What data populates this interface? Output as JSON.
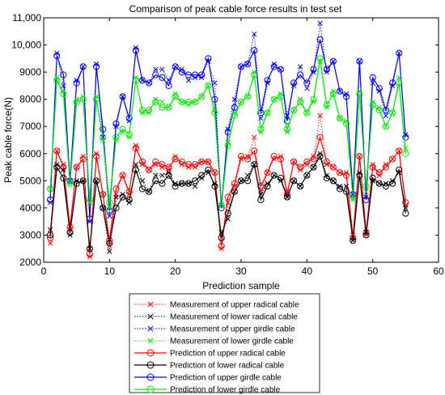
{
  "chart_data": {
    "type": "line",
    "title": "Comparison of peak cable force results in test set",
    "xlabel": "Prediction sample",
    "ylabel": "Peak cable force(N)",
    "xlim": [
      0,
      60
    ],
    "ylim": [
      2000,
      11000
    ],
    "xticks": [
      "0",
      "10",
      "20",
      "30",
      "40",
      "50",
      "60"
    ],
    "yticks": [
      "2000",
      "3000",
      "4000",
      "5000",
      "6000",
      "7000",
      "8000",
      "9000",
      "10,000",
      "11,000"
    ],
    "grid": false,
    "legend_position": "below",
    "x": [
      1,
      2,
      3,
      4,
      5,
      6,
      7,
      8,
      9,
      10,
      11,
      12,
      13,
      14,
      15,
      16,
      17,
      18,
      19,
      20,
      21,
      22,
      23,
      24,
      25,
      26,
      27,
      28,
      29,
      30,
      31,
      32,
      33,
      34,
      35,
      36,
      37,
      38,
      39,
      40,
      41,
      42,
      43,
      44,
      45,
      46,
      47,
      48,
      49,
      50,
      51,
      52,
      53,
      54,
      55
    ],
    "series": [
      {
        "name": "Measurement of upper radical cable",
        "color": "#ff0000",
        "line": "dotted",
        "marker": "x",
        "values": [
          2700,
          6100,
          5600,
          3200,
          5500,
          5900,
          2200,
          6000,
          4500,
          2600,
          4500,
          5200,
          4500,
          6300,
          5600,
          5400,
          5600,
          5500,
          5400,
          5900,
          5600,
          5500,
          5500,
          5700,
          5700,
          5300,
          2500,
          4200,
          4800,
          5800,
          5900,
          6600,
          4600,
          5300,
          5800,
          5900,
          4600,
          5700,
          5400,
          5600,
          5900,
          7400,
          5600,
          5500,
          5300,
          5300,
          3000,
          5900,
          3000,
          5600,
          5200,
          5600,
          5800,
          6100,
          4100
        ]
      },
      {
        "name": "Measurement of lower radical cable",
        "color": "#000000",
        "line": "dotted",
        "marker": "x",
        "values": [
          3200,
          5600,
          5400,
          3000,
          5000,
          5000,
          2500,
          5000,
          4000,
          2400,
          4400,
          4500,
          4200,
          5600,
          5000,
          4600,
          5200,
          5200,
          5300,
          4900,
          4900,
          4900,
          4800,
          5100,
          5300,
          4900,
          3100,
          3600,
          4600,
          5000,
          5200,
          5600,
          4500,
          4900,
          5200,
          5000,
          4400,
          5000,
          4800,
          5200,
          5500,
          6000,
          5200,
          5000,
          4800,
          4800,
          2800,
          5300,
          3100,
          5000,
          4900,
          4900,
          5000,
          5300,
          4000
        ]
      },
      {
        "name": "Measurement of upper girdle cable",
        "color": "#0000ff",
        "line": "dotted",
        "marker": "x",
        "values": [
          4200,
          9700,
          8500,
          5000,
          8700,
          9200,
          3500,
          9300,
          6600,
          3700,
          7000,
          8100,
          7200,
          9900,
          8700,
          8600,
          9100,
          9100,
          8700,
          9200,
          9100,
          8700,
          8800,
          8800,
          9400,
          8600,
          4100,
          6900,
          8000,
          9200,
          9300,
          10400,
          7300,
          8600,
          9300,
          9100,
          7400,
          8500,
          9200,
          8400,
          9000,
          10800,
          9000,
          9400,
          8300,
          8200,
          4500,
          9400,
          4400,
          8600,
          8300,
          7400,
          8500,
          9700,
          6700
        ]
      },
      {
        "name": "Measurement of lower girdle cable",
        "color": "#00ee00",
        "line": "dotted",
        "marker": "x",
        "values": [
          4700,
          8800,
          8300,
          4900,
          8000,
          8100,
          4200,
          8100,
          6500,
          4000,
          6500,
          6800,
          6600,
          8800,
          7500,
          7500,
          8000,
          7900,
          7700,
          8200,
          7900,
          7800,
          7900,
          8100,
          8500,
          7600,
          4100,
          6400,
          7500,
          7900,
          8100,
          9000,
          6800,
          7500,
          8000,
          8200,
          6800,
          7600,
          8000,
          7500,
          7900,
          9400,
          7700,
          8300,
          7300,
          7200,
          4300,
          8300,
          4600,
          7900,
          7700,
          7000,
          7500,
          8800,
          6200
        ]
      },
      {
        "name": "Prediction of upper radical cable",
        "color": "#ff0000",
        "line": "solid",
        "marker": "o",
        "values": [
          2900,
          6100,
          5500,
          3300,
          5500,
          5800,
          2300,
          5900,
          4500,
          2800,
          4700,
          5200,
          4600,
          6200,
          5700,
          5400,
          5700,
          5600,
          5500,
          5800,
          5700,
          5600,
          5600,
          5700,
          5700,
          5300,
          2600,
          4400,
          4900,
          5900,
          5800,
          6100,
          4800,
          5300,
          5900,
          5800,
          4500,
          5700,
          5500,
          5700,
          5800,
          6600,
          5700,
          5500,
          5300,
          5200,
          2900,
          5900,
          3100,
          5500,
          5300,
          5500,
          5800,
          6100,
          4200
        ]
      },
      {
        "name": "Prediction of lower radical cable",
        "color": "#000000",
        "line": "solid",
        "marker": "o",
        "values": [
          3000,
          5500,
          5100,
          3100,
          4900,
          5000,
          2500,
          5000,
          4000,
          2700,
          4000,
          4400,
          4300,
          5400,
          4700,
          4600,
          5000,
          4900,
          5200,
          4800,
          4900,
          4900,
          5000,
          5200,
          5400,
          4800,
          2900,
          3800,
          4600,
          5000,
          5000,
          5600,
          4300,
          4800,
          5200,
          5100,
          4400,
          5000,
          4800,
          5200,
          5500,
          5900,
          5100,
          5000,
          4700,
          4600,
          2800,
          5200,
          3000,
          5100,
          4900,
          4800,
          4900,
          5400,
          3800
        ]
      },
      {
        "name": "Prediction of upper girdle cable",
        "color": "#0000ff",
        "line": "solid",
        "marker": "o",
        "values": [
          4300,
          9600,
          8900,
          5000,
          8600,
          9200,
          3600,
          9200,
          6900,
          3900,
          7100,
          8100,
          7300,
          9800,
          8700,
          8600,
          8900,
          8800,
          8500,
          9200,
          9000,
          8900,
          8900,
          8900,
          9500,
          8000,
          4000,
          6800,
          7700,
          9200,
          9300,
          9800,
          7500,
          8700,
          9200,
          9100,
          7200,
          8600,
          8900,
          8600,
          9100,
          10200,
          9100,
          9400,
          8300,
          8100,
          4500,
          9400,
          4300,
          8800,
          8400,
          7600,
          8600,
          9700,
          6600
        ]
      },
      {
        "name": "Prediction of lower girdle cable",
        "color": "#00ee00",
        "line": "solid",
        "marker": "o",
        "values": [
          4700,
          8700,
          8200,
          4900,
          7900,
          8000,
          4300,
          8000,
          6600,
          4200,
          6600,
          6900,
          6700,
          8700,
          7600,
          7600,
          7900,
          7700,
          7700,
          8100,
          7900,
          7900,
          7900,
          8100,
          8500,
          7500,
          4100,
          6300,
          7400,
          7900,
          8100,
          8900,
          6900,
          7500,
          8000,
          8100,
          6900,
          7600,
          7900,
          7500,
          8000,
          9500,
          7800,
          8200,
          7300,
          7100,
          4400,
          8200,
          4800,
          7800,
          7600,
          7000,
          7500,
          8600,
          6000
        ]
      }
    ]
  }
}
